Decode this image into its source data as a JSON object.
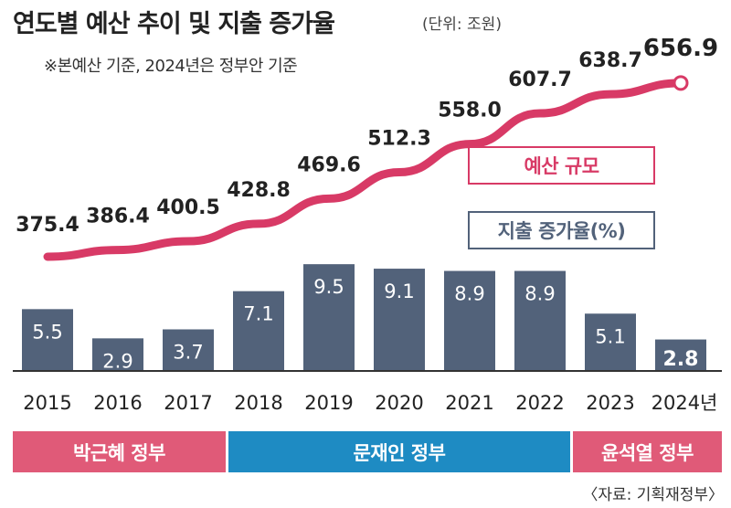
{
  "header": {
    "title": "연도별 예산 추이 및 지출 증가율",
    "unit": "(단위: 조원)",
    "note": "※본예산 기준, 2024년은 정부안 기준"
  },
  "legend": {
    "budget": "예산 규모",
    "growth": "지출 증가율(%)"
  },
  "governments": [
    {
      "label": "박근혜 정부",
      "color": "#e05a78"
    },
    {
      "label": "문재인 정부",
      "color": "#1e8bc3"
    },
    {
      "label": "윤석열 정부",
      "color": "#e05a78"
    }
  ],
  "source": "〈자료: 기획재정부〉",
  "colors": {
    "line": "#d83a66",
    "bar": "#52627a",
    "axis": "#333333"
  },
  "chart_data": {
    "type": "bar+line",
    "categories": [
      "2015",
      "2016",
      "2017",
      "2018",
      "2019",
      "2020",
      "2021",
      "2022",
      "2023",
      "2024년"
    ],
    "series": [
      {
        "name": "예산 규모",
        "type": "line",
        "values": [
          375.4,
          386.4,
          400.5,
          428.8,
          469.6,
          512.3,
          558.0,
          607.7,
          638.7,
          656.9
        ],
        "labels": [
          "375.4",
          "386.4",
          "400.5",
          "428.8",
          "469.6",
          "512.3",
          "558.0",
          "607.7",
          "638.7",
          "656.9"
        ]
      },
      {
        "name": "지출 증가율(%)",
        "type": "bar",
        "values": [
          5.5,
          2.9,
          3.7,
          7.1,
          9.5,
          9.1,
          8.9,
          8.9,
          5.1,
          2.8
        ],
        "labels": [
          "5.5",
          "2.9",
          "3.7",
          "7.1",
          "9.5",
          "9.1",
          "8.9",
          "8.9",
          "5.1",
          "2.8"
        ]
      }
    ]
  }
}
